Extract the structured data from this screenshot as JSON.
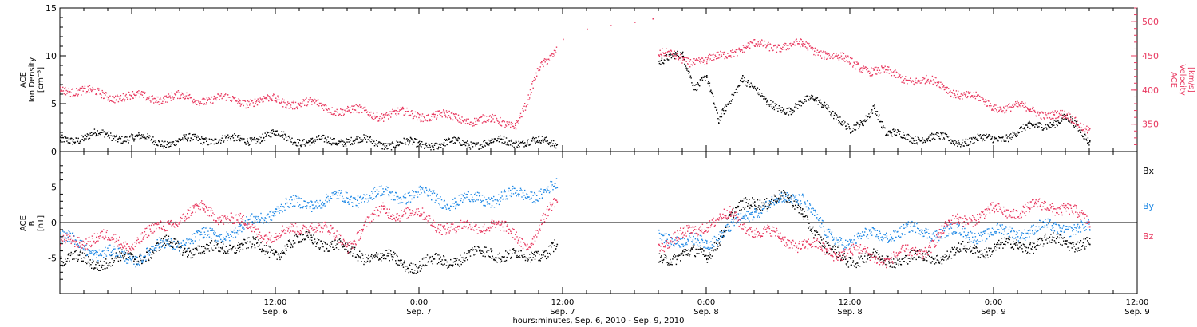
{
  "colors": {
    "black": "#000000",
    "red": "#e8385f",
    "blue": "#1e88e5"
  },
  "x_axis": {
    "title": "hours:minutes, Sep.  6, 2010 - Sep.  9, 2010",
    "ticks": [
      {
        "x": 12,
        "time": "12:00",
        "date": "Sep. 6"
      },
      {
        "x": 24,
        "time": "0:00",
        "date": "Sep. 7"
      },
      {
        "x": 36,
        "time": "12:00",
        "date": "Sep. 7"
      },
      {
        "x": 48,
        "time": "0:00",
        "date": "Sep. 8"
      },
      {
        "x": 60,
        "time": "12:00",
        "date": "Sep. 8"
      },
      {
        "x": 72,
        "time": "0:00",
        "date": "Sep. 9"
      },
      {
        "x": 84,
        "time": "12:00",
        "date": "Sep. 9"
      }
    ]
  },
  "panel_top": {
    "left_label": [
      "ACE",
      "Ion Density",
      "[cm⁻³]"
    ],
    "right_label": [
      "ACE",
      "Velocity",
      "[km/s]"
    ]
  },
  "panel_bottom": {
    "left_label": [
      "ACE",
      "B",
      "[nT]"
    ],
    "legend": [
      "Bx",
      "By",
      "Bz"
    ]
  },
  "chart_data": [
    {
      "type": "scatter",
      "x_unit": "hours since Sep. 6, 2010 00:00",
      "xlim": [
        -6,
        84
      ],
      "ylim_left": [
        0,
        15
      ],
      "ylim_right": [
        310,
        520
      ],
      "left_ticks": [
        0,
        5,
        10,
        15
      ],
      "right_ticks": [
        350,
        400,
        450,
        500
      ],
      "gap": [
        35.5,
        44
      ],
      "series": [
        {
          "name": "Ion Density",
          "axis": "left",
          "color": "#000000",
          "points": [
            [
              -6,
              1.2
            ],
            [
              -3,
              1.8
            ],
            [
              0,
              1.5
            ],
            [
              3,
              1.0
            ],
            [
              6,
              1.4
            ],
            [
              9,
              1.2
            ],
            [
              12,
              1.8
            ],
            [
              15,
              1.0
            ],
            [
              18,
              1.3
            ],
            [
              21,
              0.9
            ],
            [
              24,
              0.8
            ],
            [
              27,
              0.9
            ],
            [
              30,
              1.0
            ],
            [
              33,
              1.2
            ],
            [
              35.5,
              0.8
            ],
            [
              44,
              9.5
            ],
            [
              46,
              10
            ],
            [
              47,
              7
            ],
            [
              48,
              8
            ],
            [
              49,
              3
            ],
            [
              51,
              8
            ],
            [
              53,
              5
            ],
            [
              55,
              4.5
            ],
            [
              57,
              5.5
            ],
            [
              58,
              5
            ],
            [
              60,
              2
            ],
            [
              61,
              3
            ],
            [
              62,
              5
            ],
            [
              63,
              1.8
            ],
            [
              66,
              1.5
            ],
            [
              69,
              1.2
            ],
            [
              72,
              1.3
            ],
            [
              75,
              2.5
            ],
            [
              78,
              3.5
            ],
            [
              80,
              1.2
            ]
          ]
        },
        {
          "name": "Velocity",
          "axis": "right",
          "color": "#e8385f",
          "points": [
            [
              -6,
              405
            ],
            [
              -3,
              395
            ],
            [
              0,
              390
            ],
            [
              3,
              390
            ],
            [
              6,
              388
            ],
            [
              9,
              385
            ],
            [
              12,
              385
            ],
            [
              15,
              380
            ],
            [
              18,
              370
            ],
            [
              21,
              365
            ],
            [
              24,
              365
            ],
            [
              27,
              360
            ],
            [
              30,
              355
            ],
            [
              32,
              352
            ],
            [
              33,
              380
            ],
            [
              34,
              430
            ],
            [
              36,
              475
            ],
            [
              38,
              490
            ],
            [
              40,
              495
            ],
            [
              42,
              500
            ],
            [
              43.5,
              505
            ],
            [
              44,
              452
            ],
            [
              46,
              448
            ],
            [
              48,
              440
            ],
            [
              50,
              458
            ],
            [
              52,
              465
            ],
            [
              54,
              466
            ],
            [
              56,
              465
            ],
            [
              58,
              455
            ],
            [
              60,
              440
            ],
            [
              62,
              430
            ],
            [
              64,
              420
            ],
            [
              66,
              415
            ],
            [
              68,
              405
            ],
            [
              70,
              390
            ],
            [
              72,
              378
            ],
            [
              75,
              372
            ],
            [
              77,
              365
            ],
            [
              78,
              360
            ],
            [
              80,
              345
            ]
          ]
        }
      ]
    },
    {
      "type": "scatter",
      "x_unit": "hours since Sep. 6, 2010 00:00",
      "xlim": [
        -6,
        84
      ],
      "ylim": [
        -10,
        10
      ],
      "left_ticks": [
        -5,
        0,
        5
      ],
      "gap": [
        35.5,
        44
      ],
      "series": [
        {
          "name": "Bx",
          "color": "#000000",
          "points": [
            [
              -6,
              -5
            ],
            [
              -3,
              -5.5
            ],
            [
              0,
              -5
            ],
            [
              3,
              -3
            ],
            [
              6,
              -4
            ],
            [
              9,
              -3
            ],
            [
              12,
              -4
            ],
            [
              15,
              -2
            ],
            [
              18,
              -4
            ],
            [
              21,
              -5
            ],
            [
              24,
              -6
            ],
            [
              27,
              -5
            ],
            [
              30,
              -4
            ],
            [
              33,
              -5
            ],
            [
              35.5,
              -3
            ],
            [
              44,
              -5.5
            ],
            [
              46,
              -4
            ],
            [
              48,
              -5
            ],
            [
              50,
              1
            ],
            [
              52,
              3
            ],
            [
              54,
              3.5
            ],
            [
              56,
              2
            ],
            [
              58,
              -4
            ],
            [
              60,
              -5
            ],
            [
              63,
              -5
            ],
            [
              66,
              -5
            ],
            [
              69,
              -4
            ],
            [
              72,
              -3.5
            ],
            [
              75,
              -3
            ],
            [
              78,
              -2.5
            ],
            [
              80,
              -3
            ]
          ]
        },
        {
          "name": "By",
          "color": "#1e88e5",
          "points": [
            [
              -6,
              -2
            ],
            [
              -3,
              -4
            ],
            [
              0,
              -5
            ],
            [
              3,
              -3
            ],
            [
              6,
              -2
            ],
            [
              9,
              -1
            ],
            [
              12,
              2
            ],
            [
              15,
              3
            ],
            [
              18,
              3.5
            ],
            [
              21,
              4
            ],
            [
              24,
              4
            ],
            [
              27,
              3
            ],
            [
              30,
              3.5
            ],
            [
              33,
              4
            ],
            [
              35.5,
              5
            ],
            [
              44,
              -1
            ],
            [
              46,
              -3
            ],
            [
              48,
              -2.5
            ],
            [
              50,
              -1
            ],
            [
              52,
              2
            ],
            [
              54,
              3
            ],
            [
              56,
              4
            ],
            [
              58,
              -2
            ],
            [
              60,
              -2.5
            ],
            [
              63,
              -1.5
            ],
            [
              66,
              -1
            ],
            [
              69,
              -1.5
            ],
            [
              72,
              -1.5
            ],
            [
              75,
              -1
            ],
            [
              78,
              -0.5
            ],
            [
              80,
              -1
            ]
          ]
        },
        {
          "name": "Bz",
          "color": "#e8385f",
          "points": [
            [
              -6,
              -3
            ],
            [
              -3,
              -2
            ],
            [
              0,
              -3
            ],
            [
              3,
              0
            ],
            [
              6,
              2
            ],
            [
              9,
              0
            ],
            [
              12,
              -2
            ],
            [
              15,
              0
            ],
            [
              18,
              -3
            ],
            [
              21,
              2
            ],
            [
              24,
              1
            ],
            [
              27,
              -1
            ],
            [
              30,
              0
            ],
            [
              33,
              -3
            ],
            [
              35.5,
              3
            ],
            [
              44,
              -3
            ],
            [
              46,
              -2
            ],
            [
              48,
              0
            ],
            [
              50,
              1
            ],
            [
              52,
              -1
            ],
            [
              54,
              -2
            ],
            [
              56,
              -3
            ],
            [
              58,
              -4
            ],
            [
              60,
              -4
            ],
            [
              63,
              -5
            ],
            [
              66,
              -4
            ],
            [
              69,
              0.5
            ],
            [
              72,
              1.5
            ],
            [
              75,
              2
            ],
            [
              78,
              2.5
            ],
            [
              80,
              -0.5
            ]
          ]
        }
      ]
    }
  ]
}
